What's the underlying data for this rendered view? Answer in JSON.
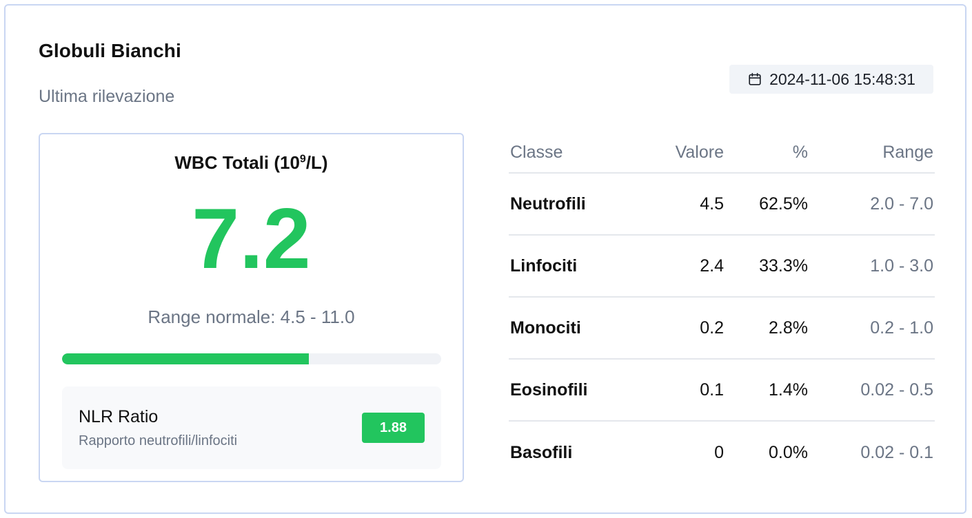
{
  "card": {
    "title": "Globuli Bianchi",
    "subtitle": "Ultima rilevazione",
    "timestamp": "2024-11-06 15:48:31",
    "timestamp_icon": "calendar-icon"
  },
  "wbc": {
    "title_prefix": "WBC Totali (10",
    "title_sup": "9",
    "title_suffix": "/L)",
    "value": "7.2",
    "range_text": "Range normale: 4.5 - 11.0",
    "progress_percent": 65,
    "accent_color": "#22c55e"
  },
  "nlr": {
    "label": "NLR Ratio",
    "description": "Rapporto neutrofili/linfociti",
    "value": "1.88"
  },
  "table": {
    "headers": {
      "classe": "Classe",
      "valore": "Valore",
      "percent": "%",
      "range": "Range"
    },
    "rows": [
      {
        "classe": "Neutrofili",
        "valore": "4.5",
        "percent": "62.5%",
        "range": "2.0 - 7.0"
      },
      {
        "classe": "Linfociti",
        "valore": "2.4",
        "percent": "33.3%",
        "range": "1.0 - 3.0"
      },
      {
        "classe": "Monociti",
        "valore": "0.2",
        "percent": "2.8%",
        "range": "0.2 - 1.0"
      },
      {
        "classe": "Eosinofili",
        "valore": "0.1",
        "percent": "1.4%",
        "range": "0.02 - 0.5"
      },
      {
        "classe": "Basofili",
        "valore": "0",
        "percent": "0.0%",
        "range": "0.02 - 0.1"
      }
    ]
  }
}
